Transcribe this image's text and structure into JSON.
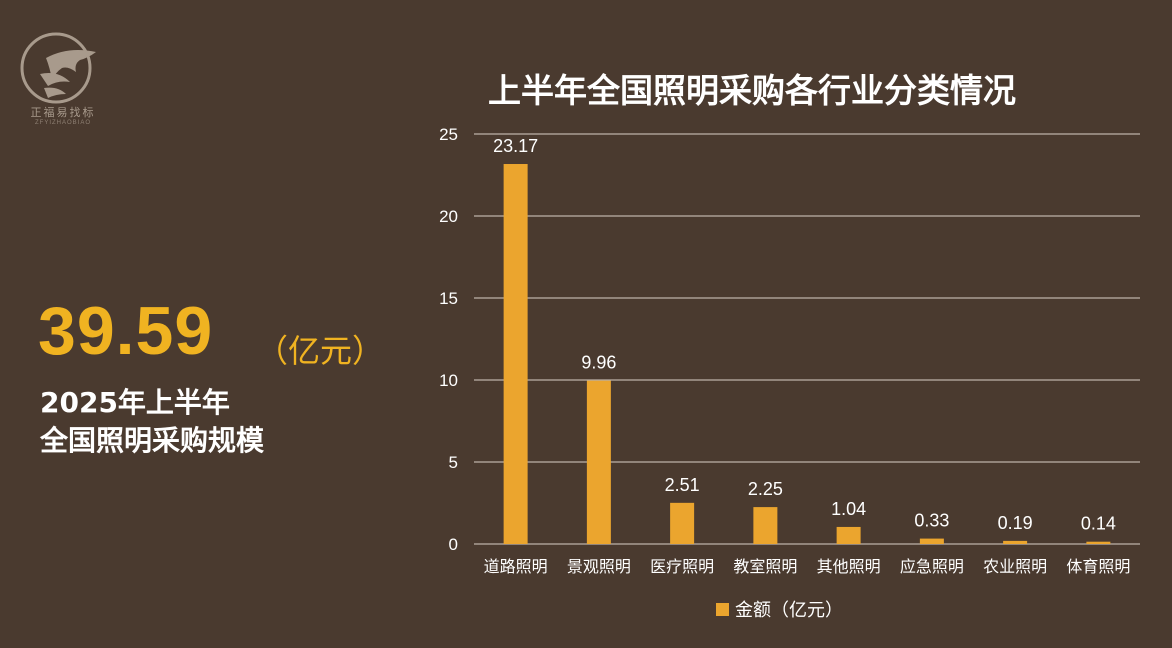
{
  "logo": {
    "name": "正福易找标",
    "subtitle": "ZFYIZHAOBIAO"
  },
  "summary": {
    "value": "39.59",
    "unit": "（亿元）",
    "line1": "2025年上半年",
    "line2": "全国照明采购规模"
  },
  "colors": {
    "background": "#4a3a2f",
    "accent": "#f0b321",
    "bar": "#eba52e",
    "gridline": "#d9d0c7"
  },
  "chart_data": {
    "type": "bar",
    "title": "上半年全国照明采购各行业分类情况",
    "categories": [
      "道路照明",
      "景观照明",
      "医疗照明",
      "教室照明",
      "其他照明",
      "应急照明",
      "农业照明",
      "体育照明"
    ],
    "series": [
      {
        "name": "金额（亿元）",
        "values": [
          23.17,
          9.96,
          2.51,
          2.25,
          1.04,
          0.33,
          0.19,
          0.14
        ]
      }
    ],
    "data_labels": [
      "23.17",
      "9.96",
      "2.51",
      "2.25",
      "1.04",
      "0.33",
      "0.19",
      "0.14"
    ],
    "ylim": [
      0,
      25
    ],
    "yticks": [
      0,
      5,
      10,
      15,
      20,
      25
    ],
    "grid": true,
    "legend": "bottom"
  }
}
